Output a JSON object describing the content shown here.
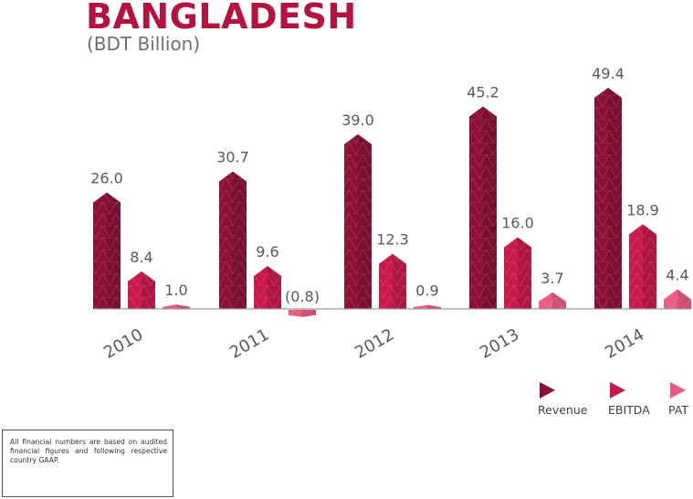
{
  "title": "BANGLADESH",
  "subtitle": "(BDT Billion)",
  "note": "All financial numbers are based on audited financial figures and following respective country GAAP.",
  "colors": {
    "revenue": "#8b1034",
    "ebitda": "#c8194a",
    "pat": "#ec5b7f",
    "axis": "#9d9d9d",
    "text": "#58595b"
  },
  "chart_data": {
    "type": "bar",
    "categories": [
      "2010",
      "2011",
      "2012",
      "2013",
      "2014"
    ],
    "series": [
      {
        "name": "Revenue",
        "values": [
          26.0,
          30.7,
          39.0,
          45.2,
          49.4
        ],
        "labels": [
          "26.0",
          "30.7",
          "39.0",
          "45.2",
          "49.4"
        ]
      },
      {
        "name": "EBITDA",
        "values": [
          8.4,
          9.6,
          12.3,
          16.0,
          18.9
        ],
        "labels": [
          "8.4",
          "9.6",
          "12.3",
          "16.0",
          "18.9"
        ]
      },
      {
        "name": "PAT",
        "values": [
          1.0,
          -0.8,
          0.9,
          3.7,
          4.4
        ],
        "labels": [
          "1.0",
          "(0.8)",
          "0.9",
          "3.7",
          "4.4"
        ]
      }
    ],
    "ylim": [
      -0.8,
      49.4
    ],
    "legend": "bottom-right"
  }
}
